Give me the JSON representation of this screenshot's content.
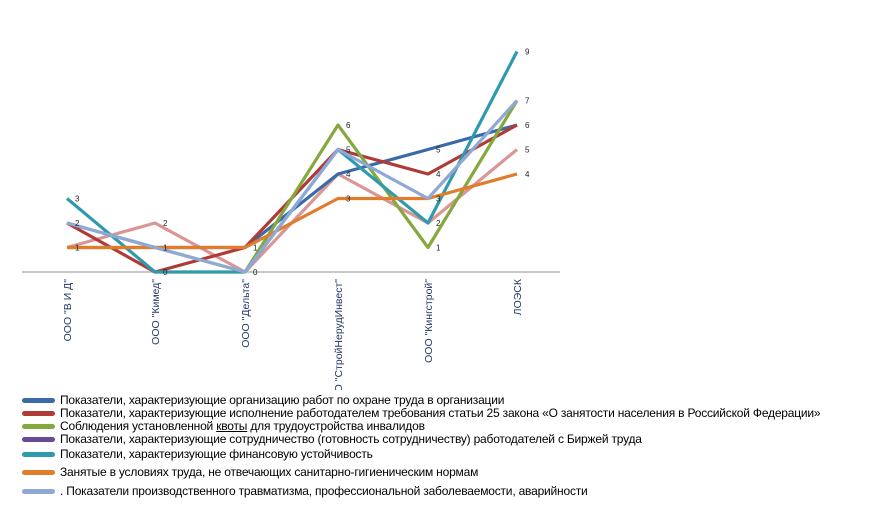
{
  "chart_data": {
    "type": "line",
    "categories": [
      "ООО \"В И Д\"",
      "ООО \"Кимед\"",
      "ООО \"Дельта\"",
      "ООО \"СтройНерудИнвест\"",
      "ООО \"Кингстрой\"",
      "ЛОЭСК"
    ],
    "ylim": [
      0,
      9
    ],
    "grid": false,
    "legend_position": "bottom",
    "category_label_color": "#1f3864",
    "series": [
      {
        "name": "Показатели, характеризующие организацию работ по охране труда в организации",
        "color": "#3a6aa8",
        "values": [
          2,
          1,
          1,
          4,
          5,
          6
        ]
      },
      {
        "name": "Показатели, характеризующие  исполнение работодателем требования статьи  25 закона «О занятости населения в Российской Федерации»",
        "color": "#b03a36",
        "values": [
          2,
          0,
          1,
          5,
          4,
          6
        ]
      },
      {
        "name": "Соблюдения установленной квоты для трудоустройства инвалидов",
        "color": "#85a83e",
        "values": [
          1,
          1,
          0,
          6,
          1,
          7
        ]
      },
      {
        "name": "Показатели, характеризующие сотрудничество (готовность сотрудничеству) работодателей с Биржей труда",
        "color": "#d99694",
        "legend_color": "#6a4a94",
        "values": [
          1,
          2,
          0,
          4,
          2,
          5
        ]
      },
      {
        "name": "Показатели, характеризующие финансовую устойчивость",
        "color": "#2f9aae",
        "values": [
          3,
          0,
          0,
          5,
          2,
          9
        ]
      },
      {
        "name": "Занятые в условиях труда, не отвечающих санитарно-гигиеническим нормам",
        "color": "#e07d2c",
        "values": [
          1,
          1,
          1,
          3,
          3,
          4
        ]
      },
      {
        "name": ". Показатели производственного травматизма, профессиональной заболеваемости, аварийности",
        "color": "#8fa9d6",
        "values": [
          2,
          1,
          0,
          5,
          3,
          7
        ]
      }
    ],
    "data_labels": [
      [
        0,
        "3",
        3
      ],
      [
        0,
        "2",
        2
      ],
      [
        0,
        "1",
        1
      ],
      [
        1,
        "2",
        2
      ],
      [
        1,
        "1",
        1
      ],
      [
        1,
        "0",
        0
      ],
      [
        2,
        "1",
        1
      ],
      [
        2,
        "0",
        0
      ],
      [
        3,
        "6",
        6
      ],
      [
        3,
        "5",
        5
      ],
      [
        3,
        "4",
        4
      ],
      [
        3,
        "3",
        3
      ],
      [
        4,
        "5",
        5
      ],
      [
        4,
        "4",
        4
      ],
      [
        4,
        "3",
        3
      ],
      [
        4,
        "2",
        2
      ],
      [
        4,
        "1",
        1
      ],
      [
        5,
        "9",
        9
      ],
      [
        5,
        "7",
        7
      ],
      [
        5,
        "6",
        6
      ],
      [
        5,
        "5",
        5
      ],
      [
        5,
        "4",
        4
      ]
    ]
  }
}
